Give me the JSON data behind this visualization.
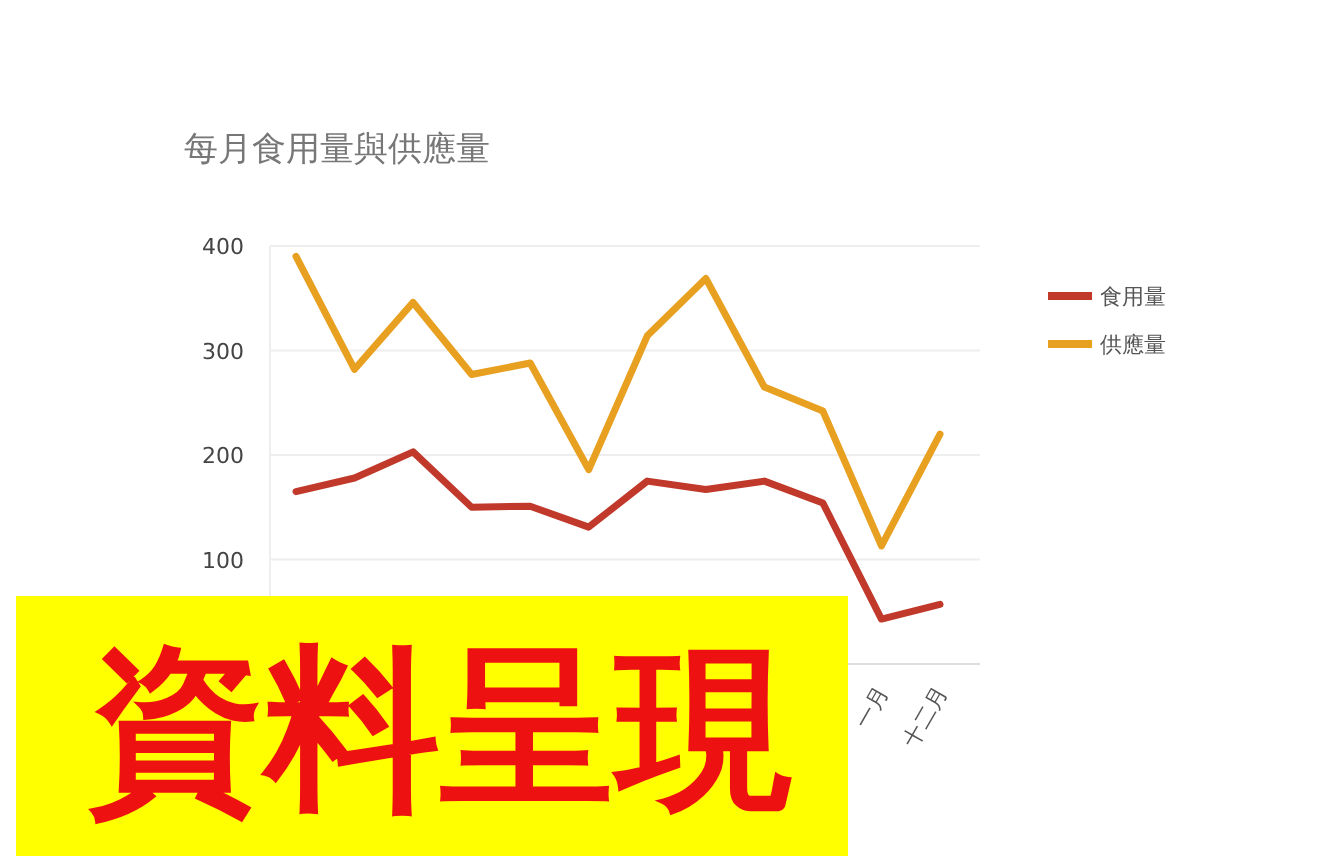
{
  "chart_data": {
    "type": "line",
    "title": "每月食用量與供應量",
    "categories": [
      null,
      null,
      null,
      null,
      null,
      null,
      null,
      null,
      null,
      null,
      "一月",
      "十二月"
    ],
    "series": [
      {
        "name": "食用量",
        "color": "#c0392b",
        "values": [
          165,
          178,
          203,
          150,
          151,
          131,
          175,
          167,
          175,
          154,
          43,
          57
        ]
      },
      {
        "name": "供應量",
        "color": "#e8a020",
        "values": [
          390,
          282,
          346,
          277,
          288,
          186,
          314,
          369,
          265,
          242,
          113,
          220
        ]
      }
    ],
    "ylim": [
      0,
      400
    ],
    "yticks": [
      100,
      200,
      300,
      400
    ],
    "grid": "y",
    "legend": "right",
    "marker": "none",
    "line_style": "solid",
    "annotations": [
      "資料呈現"
    ]
  }
}
